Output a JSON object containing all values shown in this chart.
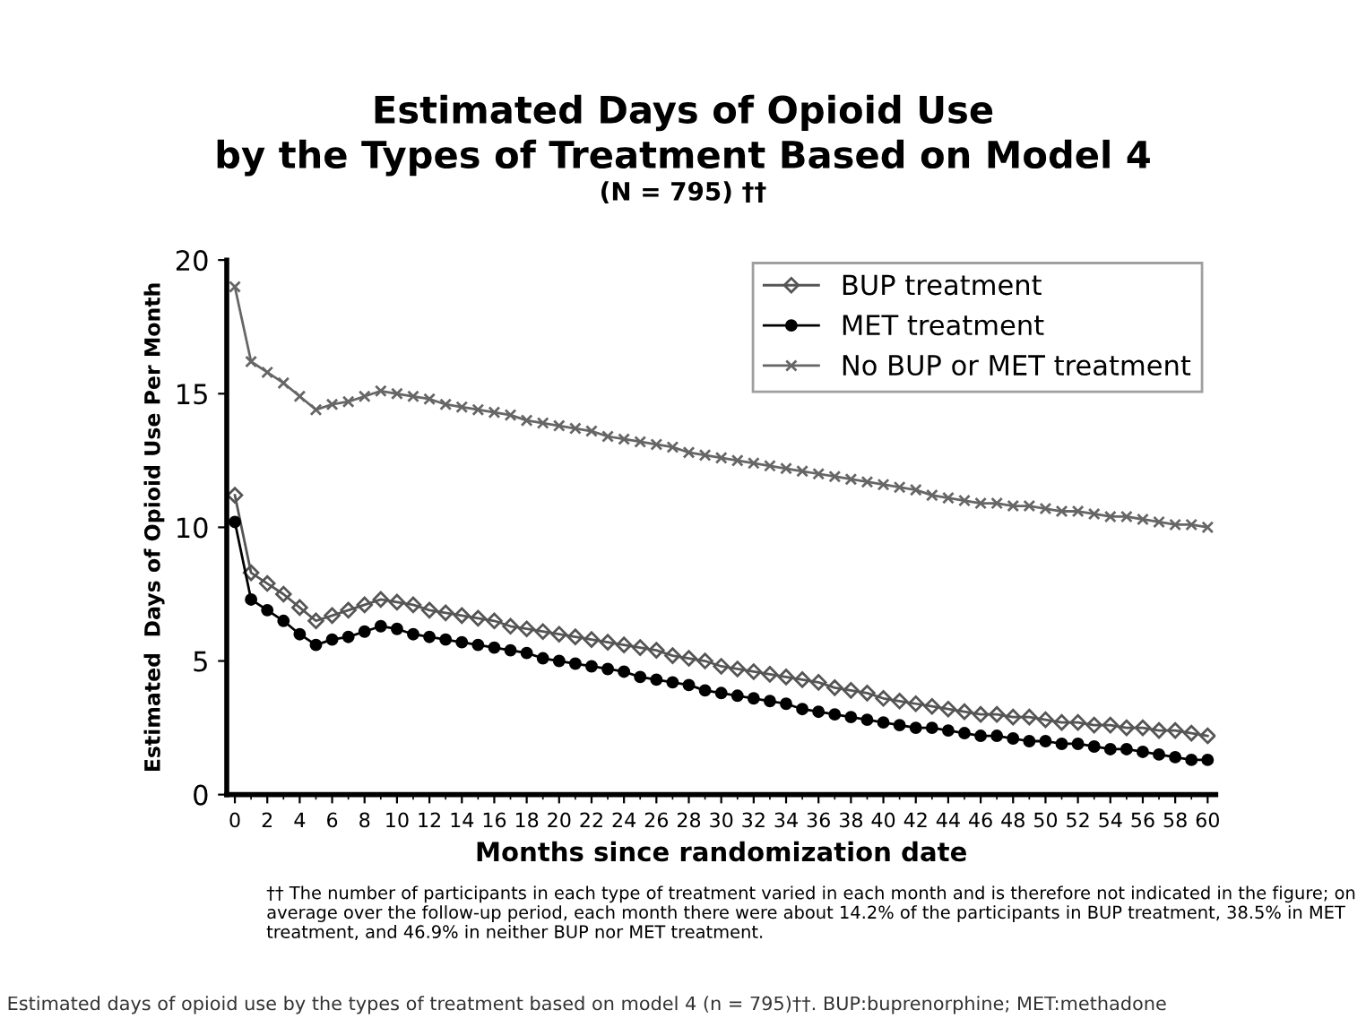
{
  "chart_data": {
    "type": "line",
    "title": "Estimated Days of Opioid Use\nby the Types of Treatment Based on Model 4",
    "subtitle": "(N = 795) ††",
    "xlabel": "Months since randomization date",
    "ylabel": "Estimated  Days of Opioid Use Per Month",
    "x": [
      0,
      1,
      2,
      3,
      4,
      5,
      6,
      7,
      8,
      9,
      10,
      11,
      12,
      13,
      14,
      15,
      16,
      17,
      18,
      19,
      20,
      21,
      22,
      23,
      24,
      25,
      26,
      27,
      28,
      29,
      30,
      31,
      32,
      33,
      34,
      35,
      36,
      37,
      38,
      39,
      40,
      41,
      42,
      43,
      44,
      45,
      46,
      47,
      48,
      49,
      50,
      51,
      52,
      53,
      54,
      55,
      56,
      57,
      58,
      59,
      60
    ],
    "series": [
      {
        "name": "BUP treatment",
        "color": "#555555",
        "marker": "diamond",
        "values": [
          11.2,
          8.3,
          7.9,
          7.5,
          7.0,
          6.5,
          6.7,
          6.9,
          7.1,
          7.3,
          7.2,
          7.1,
          6.9,
          6.8,
          6.7,
          6.6,
          6.5,
          6.3,
          6.2,
          6.1,
          6.0,
          5.9,
          5.8,
          5.7,
          5.6,
          5.5,
          5.4,
          5.2,
          5.1,
          5.0,
          4.8,
          4.7,
          4.6,
          4.5,
          4.4,
          4.3,
          4.2,
          4.0,
          3.9,
          3.8,
          3.6,
          3.5,
          3.4,
          3.3,
          3.2,
          3.1,
          3.0,
          3.0,
          2.9,
          2.9,
          2.8,
          2.7,
          2.7,
          2.6,
          2.6,
          2.5,
          2.5,
          2.4,
          2.4,
          2.3,
          2.2
        ]
      },
      {
        "name": "MET treatment",
        "color": "#000000",
        "marker": "circle",
        "values": [
          10.2,
          7.3,
          6.9,
          6.5,
          6.0,
          5.6,
          5.8,
          5.9,
          6.1,
          6.3,
          6.2,
          6.0,
          5.9,
          5.8,
          5.7,
          5.6,
          5.5,
          5.4,
          5.3,
          5.1,
          5.0,
          4.9,
          4.8,
          4.7,
          4.6,
          4.4,
          4.3,
          4.2,
          4.1,
          3.9,
          3.8,
          3.7,
          3.6,
          3.5,
          3.4,
          3.2,
          3.1,
          3.0,
          2.9,
          2.8,
          2.7,
          2.6,
          2.5,
          2.5,
          2.4,
          2.3,
          2.2,
          2.2,
          2.1,
          2.0,
          2.0,
          1.9,
          1.9,
          1.8,
          1.7,
          1.7,
          1.6,
          1.5,
          1.4,
          1.3,
          1.3
        ]
      },
      {
        "name": "No BUP or MET treatment",
        "color": "#666666",
        "marker": "cross",
        "values": [
          19.0,
          16.2,
          15.8,
          15.4,
          14.9,
          14.4,
          14.6,
          14.7,
          14.9,
          15.1,
          15.0,
          14.9,
          14.8,
          14.6,
          14.5,
          14.4,
          14.3,
          14.2,
          14.0,
          13.9,
          13.8,
          13.7,
          13.6,
          13.4,
          13.3,
          13.2,
          13.1,
          13.0,
          12.8,
          12.7,
          12.6,
          12.5,
          12.4,
          12.3,
          12.2,
          12.1,
          12.0,
          11.9,
          11.8,
          11.7,
          11.6,
          11.5,
          11.4,
          11.2,
          11.1,
          11.0,
          10.9,
          10.9,
          10.8,
          10.8,
          10.7,
          10.6,
          10.6,
          10.5,
          10.4,
          10.4,
          10.3,
          10.2,
          10.1,
          10.1,
          10.0
        ]
      }
    ],
    "xlim": [
      -0.5,
      60.5
    ],
    "xticks": [
      0,
      2,
      4,
      6,
      8,
      10,
      12,
      14,
      16,
      18,
      20,
      22,
      24,
      26,
      28,
      30,
      32,
      34,
      36,
      38,
      40,
      42,
      44,
      46,
      48,
      50,
      52,
      54,
      56,
      58,
      60
    ],
    "ylim": [
      0,
      20
    ],
    "yticks": [
      0,
      5,
      10,
      15,
      20
    ],
    "grid": false,
    "legend": "top right",
    "annotations": [
      "†† The number of participants in each type of treatment varied in each month and is therefore not indicated in the figure; on average over the follow-up period, each month there were about 14.2% of the participants in BUP treatment, 38.5% in MET treatment, and 46.9% in neither BUP nor MET treatment.",
      "Estimated days of opioid use by the types of treatment based on model 4 (n = 795)††. BUP:buprenorphine; MET:methadone"
    ]
  }
}
